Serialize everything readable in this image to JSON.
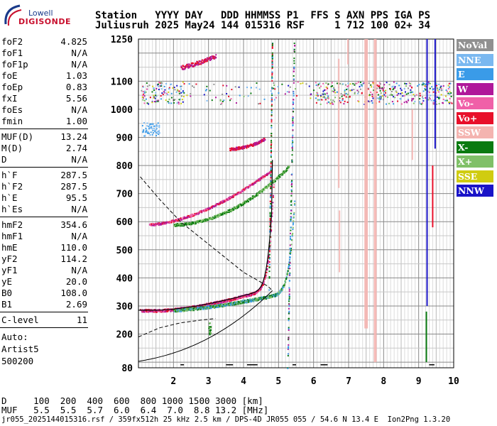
{
  "logo": {
    "line1": "Lowell",
    "line2": "DIGISONDE",
    "color_blue": "#1a3a8a",
    "color_red": "#c8102e"
  },
  "header": {
    "row1": "Station   YYYY DAY   DDD HHMMSS P1  FFS S AXN PPS IGA PS",
    "row2": "Juliusruh 2025 May24 144 015316 RSF     1 712 100 02+ 34"
  },
  "params": {
    "group1": [
      {
        "label": "foF2",
        "value": "4.825"
      },
      {
        "label": "foF1",
        "value": "N/A"
      },
      {
        "label": "foF1p",
        "value": "N/A"
      },
      {
        "label": "foE",
        "value": "1.03"
      },
      {
        "label": "foEp",
        "value": "0.83"
      },
      {
        "label": "fxI",
        "value": "5.56"
      },
      {
        "label": "foEs",
        "value": "N/A"
      },
      {
        "label": "fmin",
        "value": "1.00"
      }
    ],
    "group2": [
      {
        "label": "MUF(D)",
        "value": "13.24"
      },
      {
        "label": "M(D)",
        "value": "2.74"
      },
      {
        "label": "D",
        "value": "N/A"
      }
    ],
    "group3": [
      {
        "label": "h`F",
        "value": "287.5"
      },
      {
        "label": "h`F2",
        "value": "287.5"
      },
      {
        "label": "h`E",
        "value": "95.5"
      },
      {
        "label": "h`Es",
        "value": "N/A"
      }
    ],
    "group4": [
      {
        "label": "hmF2",
        "value": "354.6"
      },
      {
        "label": "hmF1",
        "value": "N/A"
      },
      {
        "label": "hmE",
        "value": "110.0"
      },
      {
        "label": "yF2",
        "value": "114.2"
      },
      {
        "label": "yF1",
        "value": "N/A"
      },
      {
        "label": "yE",
        "value": "20.0"
      },
      {
        "label": "B0",
        "value": "108.0"
      },
      {
        "label": "B1",
        "value": "2.69"
      }
    ],
    "group5": [
      {
        "label": "C-level",
        "value": "11"
      }
    ],
    "auto": {
      "line1": "Auto:",
      "line2": "Artist5",
      "line3": "500200"
    }
  },
  "legend": [
    {
      "label": "NoVal",
      "color": "#909090"
    },
    {
      "label": "NNE",
      "color": "#7ab8f0"
    },
    {
      "label": "E",
      "color": "#3a9be8"
    },
    {
      "label": "W",
      "color": "#b0189a"
    },
    {
      "label": "Vo-",
      "color": "#f060a8"
    },
    {
      "label": "Vo+",
      "color": "#e8102a"
    },
    {
      "label": "SSW",
      "color": "#f4b4b0"
    },
    {
      "label": "X-",
      "color": "#0a7a10"
    },
    {
      "label": "X+",
      "color": "#80c068"
    },
    {
      "label": "SSE",
      "color": "#d0cc10"
    },
    {
      "label": "NNW",
      "color": "#1a14c8"
    }
  ],
  "chart_data": {
    "type": "scatter",
    "x_ticks": [
      "2",
      "3",
      "4",
      "5",
      "6",
      "7",
      "8",
      "9",
      "10"
    ],
    "y_ticks": [
      "80",
      "200",
      "300",
      "400",
      "500",
      "600",
      "700",
      "800",
      "900",
      "1000",
      "1100",
      "1250"
    ],
    "xlim": [
      1,
      10
    ],
    "ylim": [
      80,
      1250
    ],
    "grid": true
  },
  "footer": {
    "row_d": "D     100  200  400  600  800 1000 1500 3000 [km]",
    "row_muf": "MUF   5.5  5.5  5.7  6.0  6.4  7.0  8.8 13.2 [MHz]",
    "file_line": "jr055_2025144015316.rsf / 359fx512h 25 kHz 2.5 km / DPS-4D JR055 055 / 54.6 N 13.4 E  Ion2Png 1.3.20"
  }
}
